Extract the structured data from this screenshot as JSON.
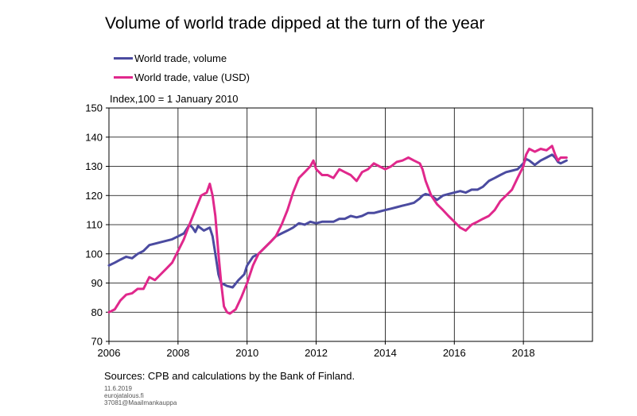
{
  "title": "Volume of world trade dipped at the turn of the year",
  "unit_label": "Index,100 = 1 January 2010",
  "source": "Sources: CPB and calculations by the Bank of Finland.",
  "footer": {
    "date": "11.6.2019",
    "site": "eurojatalous.fi",
    "code": "37081@Maailmankauppa"
  },
  "chart_data": {
    "type": "line",
    "title": "Volume of world trade dipped at the turn of the year",
    "ylabel": "Index,100 = 1 January 2010",
    "xlim": [
      2006,
      2020
    ],
    "ylim": [
      70,
      150
    ],
    "xticks": [
      "2006",
      "2008",
      "2010",
      "2012",
      "2014",
      "2016",
      "2018"
    ],
    "xtick_values": [
      2006,
      2008,
      2010,
      2012,
      2014,
      2016,
      2018
    ],
    "yticks": [
      "70",
      "80",
      "90",
      "100",
      "110",
      "120",
      "130",
      "140",
      "150"
    ],
    "grid": true,
    "legend_position": "top-left",
    "series": [
      {
        "name": "World trade, volume",
        "color": "#4B4BA0",
        "points": [
          [
            2006.0,
            96
          ],
          [
            2006.17,
            97
          ],
          [
            2006.33,
            98
          ],
          [
            2006.5,
            99
          ],
          [
            2006.67,
            98.5
          ],
          [
            2006.83,
            100
          ],
          [
            2007.0,
            101
          ],
          [
            2007.17,
            103
          ],
          [
            2007.33,
            103.5
          ],
          [
            2007.5,
            104
          ],
          [
            2007.67,
            104.5
          ],
          [
            2007.83,
            105
          ],
          [
            2008.0,
            106
          ],
          [
            2008.17,
            107
          ],
          [
            2008.33,
            110
          ],
          [
            2008.42,
            109
          ],
          [
            2008.5,
            107.5
          ],
          [
            2008.58,
            109.5
          ],
          [
            2008.75,
            108
          ],
          [
            2008.92,
            109
          ],
          [
            2009.0,
            106
          ],
          [
            2009.08,
            100
          ],
          [
            2009.17,
            93
          ],
          [
            2009.25,
            90
          ],
          [
            2009.42,
            89
          ],
          [
            2009.58,
            88.5
          ],
          [
            2009.75,
            91
          ],
          [
            2009.92,
            93
          ],
          [
            2010.0,
            96
          ],
          [
            2010.17,
            99
          ],
          [
            2010.33,
            100
          ],
          [
            2010.5,
            102
          ],
          [
            2010.67,
            104
          ],
          [
            2010.83,
            106
          ],
          [
            2011.0,
            107
          ],
          [
            2011.17,
            108
          ],
          [
            2011.33,
            109
          ],
          [
            2011.5,
            110.5
          ],
          [
            2011.67,
            110
          ],
          [
            2011.83,
            111
          ],
          [
            2012.0,
            110.5
          ],
          [
            2012.17,
            111
          ],
          [
            2012.33,
            111
          ],
          [
            2012.5,
            111
          ],
          [
            2012.67,
            112
          ],
          [
            2012.83,
            112
          ],
          [
            2013.0,
            113
          ],
          [
            2013.17,
            112.5
          ],
          [
            2013.33,
            113
          ],
          [
            2013.5,
            114
          ],
          [
            2013.67,
            114
          ],
          [
            2013.83,
            114.5
          ],
          [
            2014.0,
            115
          ],
          [
            2014.17,
            115.5
          ],
          [
            2014.33,
            116
          ],
          [
            2014.5,
            116.5
          ],
          [
            2014.67,
            117
          ],
          [
            2014.83,
            117.5
          ],
          [
            2015.0,
            119
          ],
          [
            2015.08,
            120
          ],
          [
            2015.17,
            120.5
          ],
          [
            2015.33,
            120
          ],
          [
            2015.5,
            118.5
          ],
          [
            2015.67,
            120
          ],
          [
            2015.83,
            120.5
          ],
          [
            2016.0,
            121
          ],
          [
            2016.17,
            121.5
          ],
          [
            2016.33,
            121
          ],
          [
            2016.5,
            122
          ],
          [
            2016.67,
            122
          ],
          [
            2016.83,
            123
          ],
          [
            2017.0,
            125
          ],
          [
            2017.17,
            126
          ],
          [
            2017.33,
            127
          ],
          [
            2017.5,
            128
          ],
          [
            2017.67,
            128.5
          ],
          [
            2017.83,
            129
          ],
          [
            2018.0,
            131
          ],
          [
            2018.08,
            132.5
          ],
          [
            2018.17,
            132
          ],
          [
            2018.33,
            130.5
          ],
          [
            2018.5,
            132
          ],
          [
            2018.67,
            133
          ],
          [
            2018.83,
            134
          ],
          [
            2018.92,
            133
          ],
          [
            2019.0,
            131.5
          ],
          [
            2019.08,
            131
          ],
          [
            2019.25,
            132
          ]
        ]
      },
      {
        "name": "World trade, value (USD)",
        "color": "#E0288C",
        "points": [
          [
            2006.0,
            80
          ],
          [
            2006.17,
            81
          ],
          [
            2006.33,
            84
          ],
          [
            2006.5,
            86
          ],
          [
            2006.67,
            86.5
          ],
          [
            2006.83,
            88
          ],
          [
            2007.0,
            88
          ],
          [
            2007.17,
            92
          ],
          [
            2007.33,
            91
          ],
          [
            2007.5,
            93
          ],
          [
            2007.67,
            95
          ],
          [
            2007.83,
            97
          ],
          [
            2008.0,
            101
          ],
          [
            2008.17,
            105
          ],
          [
            2008.33,
            110
          ],
          [
            2008.5,
            115
          ],
          [
            2008.67,
            120
          ],
          [
            2008.83,
            121
          ],
          [
            2008.92,
            124
          ],
          [
            2009.0,
            120
          ],
          [
            2009.08,
            113
          ],
          [
            2009.17,
            100
          ],
          [
            2009.25,
            90
          ],
          [
            2009.33,
            82
          ],
          [
            2009.42,
            80
          ],
          [
            2009.5,
            79.5
          ],
          [
            2009.67,
            81
          ],
          [
            2009.83,
            85
          ],
          [
            2010.0,
            90
          ],
          [
            2010.17,
            96
          ],
          [
            2010.33,
            100
          ],
          [
            2010.5,
            102
          ],
          [
            2010.67,
            104
          ],
          [
            2010.83,
            106
          ],
          [
            2011.0,
            110
          ],
          [
            2011.17,
            115
          ],
          [
            2011.33,
            121
          ],
          [
            2011.5,
            126
          ],
          [
            2011.67,
            128
          ],
          [
            2011.83,
            130
          ],
          [
            2011.92,
            132
          ],
          [
            2012.0,
            129
          ],
          [
            2012.17,
            127
          ],
          [
            2012.33,
            127
          ],
          [
            2012.5,
            126
          ],
          [
            2012.67,
            129
          ],
          [
            2012.83,
            128
          ],
          [
            2013.0,
            127
          ],
          [
            2013.17,
            125
          ],
          [
            2013.33,
            128
          ],
          [
            2013.5,
            129
          ],
          [
            2013.67,
            131
          ],
          [
            2013.83,
            130
          ],
          [
            2014.0,
            129
          ],
          [
            2014.17,
            130
          ],
          [
            2014.33,
            131.5
          ],
          [
            2014.5,
            132
          ],
          [
            2014.67,
            133
          ],
          [
            2014.83,
            132
          ],
          [
            2015.0,
            131
          ],
          [
            2015.08,
            129
          ],
          [
            2015.17,
            125
          ],
          [
            2015.33,
            120
          ],
          [
            2015.5,
            117
          ],
          [
            2015.67,
            115
          ],
          [
            2015.83,
            113
          ],
          [
            2016.0,
            111
          ],
          [
            2016.17,
            109
          ],
          [
            2016.33,
            108
          ],
          [
            2016.5,
            110
          ],
          [
            2016.67,
            111
          ],
          [
            2016.83,
            112
          ],
          [
            2017.0,
            113
          ],
          [
            2017.17,
            115
          ],
          [
            2017.33,
            118
          ],
          [
            2017.5,
            120
          ],
          [
            2017.67,
            122
          ],
          [
            2017.83,
            126
          ],
          [
            2018.0,
            130
          ],
          [
            2018.08,
            134
          ],
          [
            2018.17,
            136
          ],
          [
            2018.33,
            135
          ],
          [
            2018.5,
            136
          ],
          [
            2018.67,
            135.5
          ],
          [
            2018.83,
            137
          ],
          [
            2018.92,
            134
          ],
          [
            2019.0,
            132
          ],
          [
            2019.08,
            133
          ],
          [
            2019.25,
            133
          ]
        ]
      }
    ]
  }
}
